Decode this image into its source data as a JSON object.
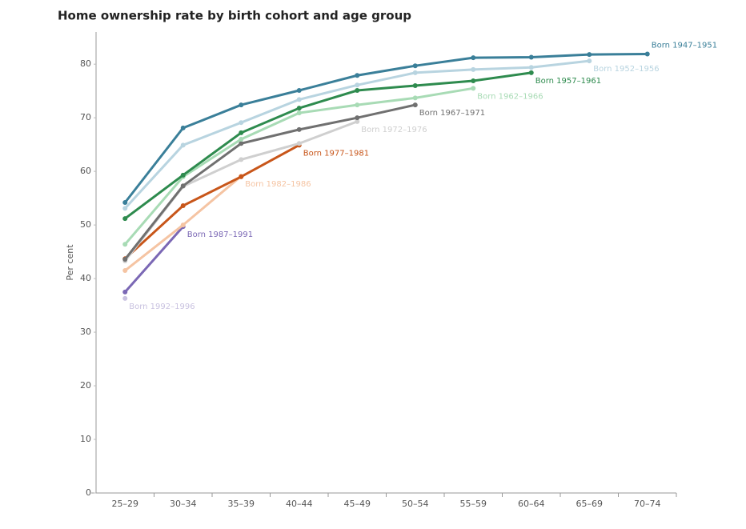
{
  "chart_data": {
    "type": "line",
    "title": "Home ownership rate by birth cohort and age group",
    "y_label": "Per cent",
    "categories": [
      "25–29",
      "30–34",
      "35–39",
      "40–44",
      "45–49",
      "50–54",
      "55–59",
      "60–64",
      "65–69",
      "70–74"
    ],
    "ylim": [
      0,
      86
    ],
    "yticks": [
      0,
      10,
      20,
      30,
      40,
      50,
      60,
      70,
      80
    ],
    "series": [
      {
        "name": "Born 1947–1951",
        "color": "#3a7f99",
        "values": [
          54.2,
          68.1,
          72.4,
          75.1,
          77.9,
          79.7,
          81.2,
          81.3,
          81.8,
          81.9
        ]
      },
      {
        "name": "Born 1952–1956",
        "color": "#b8d4e0",
        "values": [
          53.1,
          64.9,
          69.1,
          73.4,
          76.1,
          78.4,
          79.0,
          79.4,
          80.6,
          null
        ]
      },
      {
        "name": "Born 1957–1961",
        "color": "#2e8b4e",
        "values": [
          51.2,
          59.3,
          67.2,
          71.8,
          75.1,
          76.0,
          76.9,
          78.4,
          null,
          null
        ]
      },
      {
        "name": "Born 1962–1966",
        "color": "#a8dbb5",
        "values": [
          46.4,
          59.0,
          66.0,
          70.9,
          72.4,
          73.7,
          75.5,
          null,
          null,
          null
        ]
      },
      {
        "name": "Born 1967–1971",
        "color": "#707070",
        "values": [
          43.6,
          57.3,
          65.2,
          67.8,
          70.0,
          72.4,
          null,
          null,
          null,
          null
        ]
      },
      {
        "name": "Born 1972–1976",
        "color": "#cfcfcf",
        "values": [
          43.3,
          57.2,
          62.2,
          65.2,
          69.3,
          null,
          null,
          null,
          null,
          null
        ]
      },
      {
        "name": "Born 1977–1981",
        "color": "#c8561a",
        "values": [
          43.7,
          53.6,
          59.0,
          64.9,
          null,
          null,
          null,
          null,
          null,
          null
        ]
      },
      {
        "name": "Born 1982–1986",
        "color": "#f5c4a3",
        "values": [
          41.5,
          50.0,
          59.1,
          null,
          null,
          null,
          null,
          null,
          null,
          null
        ]
      },
      {
        "name": "Born 1987–1991",
        "color": "#7b68b5",
        "values": [
          37.5,
          49.7,
          null,
          null,
          null,
          null,
          null,
          null,
          null,
          null
        ]
      },
      {
        "name": "Born 1992–1996",
        "color": "#c9c2e0",
        "values": [
          36.3,
          null,
          null,
          null,
          null,
          null,
          null,
          null,
          null,
          null
        ]
      }
    ]
  }
}
